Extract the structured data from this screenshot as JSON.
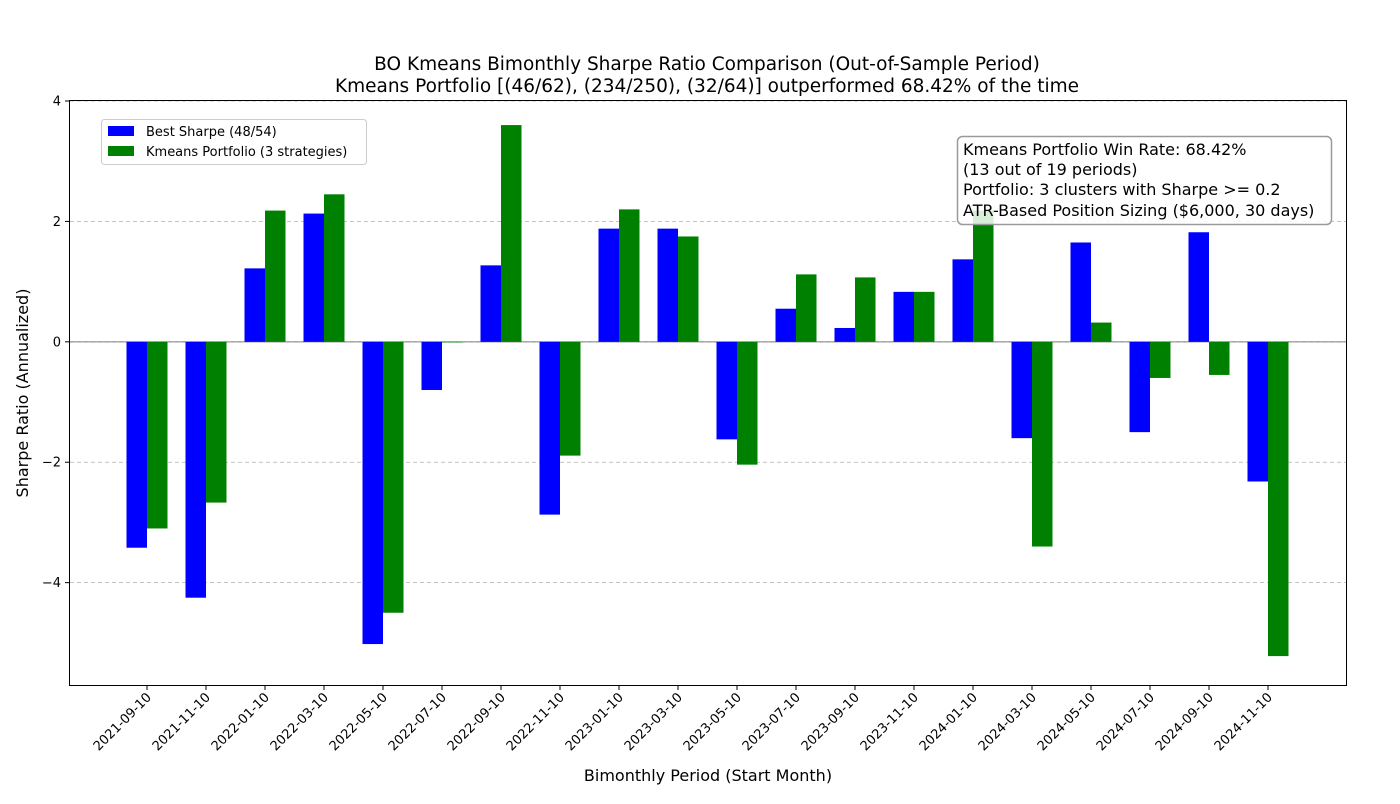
{
  "chart_data": {
    "type": "bar",
    "title": "BO Kmeans Bimonthly Sharpe Ratio Comparison (Out-of-Sample Period)",
    "subtitle": "Kmeans Portfolio [(46/62), (234/250), (32/64)] outperformed 68.42% of the time",
    "xlabel": "Bimonthly Period (Start Month)",
    "ylabel": "Sharpe Ratio (Annualized)",
    "ylim": [
      -5.7,
      4.0
    ],
    "yticks": [
      -4,
      -2,
      0,
      2,
      4
    ],
    "ytick_labels": [
      "−4",
      "−2",
      "0",
      "2",
      "4"
    ],
    "grid": "horizontal dashed",
    "legend_position": "upper-left",
    "categories": [
      "2021-09-10",
      "2021-11-10",
      "2022-01-10",
      "2022-03-10",
      "2022-05-10",
      "2022-07-10",
      "2022-09-10",
      "2022-11-10",
      "2023-01-10",
      "2023-03-10",
      "2023-05-10",
      "2023-07-10",
      "2023-09-10",
      "2023-11-10",
      "2024-01-10",
      "2024-03-10",
      "2024-05-10",
      "2024-07-10",
      "2024-09-10",
      "2024-11-10"
    ],
    "series": [
      {
        "name": "Best Sharpe (48/54)",
        "color": "#0000ff",
        "values": [
          -3.42,
          -4.25,
          1.22,
          2.13,
          -5.02,
          -0.8,
          1.27,
          -2.87,
          1.88,
          1.88,
          -1.62,
          0.55,
          0.23,
          0.83,
          1.37,
          -1.6,
          1.65,
          -1.5,
          1.82,
          -2.32
        ]
      },
      {
        "name": "Kmeans Portfolio (3 strategies)",
        "color": "#008000",
        "values": [
          -3.1,
          -2.67,
          2.18,
          2.45,
          -4.5,
          0.0,
          3.6,
          -1.89,
          2.2,
          1.75,
          -2.04,
          1.12,
          1.07,
          0.83,
          2.18,
          -3.4,
          0.32,
          -0.6,
          -0.55,
          -5.22
        ]
      }
    ],
    "annotation": {
      "lines": [
        "Kmeans Portfolio Win Rate: 68.42%",
        "(13 out of 19 periods)",
        "Portfolio: 3 clusters with Sharpe >= 0.2",
        "ATR-Based Position Sizing ($6,000, 30 days)"
      ]
    }
  }
}
